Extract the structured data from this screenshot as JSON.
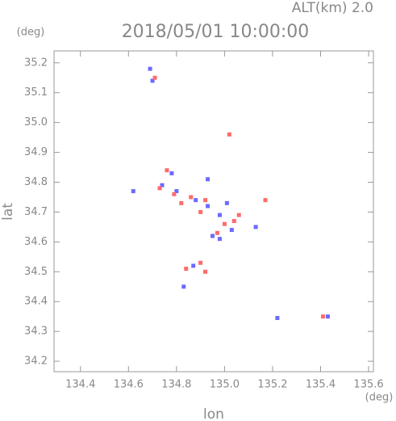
{
  "chart_data": {
    "type": "scatter",
    "title": "2018/05/01 10:00:00",
    "subtitle": "ALT(km) 2.0",
    "x_label": "lon",
    "y_label": "lat",
    "x_unit": "(deg)",
    "y_unit": "(deg)",
    "xlim": [
      134.29,
      135.62
    ],
    "ylim": [
      34.165,
      35.24
    ],
    "xticks": [
      134.4,
      134.6,
      134.8,
      {
        "value": 135,
        "label": "135.0"
      },
      135.2,
      135.4,
      135.6
    ],
    "yticks": [
      34.2,
      34.3,
      34.4,
      34.5,
      34.6,
      34.7,
      34.8,
      34.9,
      {
        "value": 35,
        "label": "35.0"
      },
      35.1,
      35.2
    ],
    "series": [
      {
        "color": "#6a6aff",
        "x": [
          134.69,
          134.7,
          134.78,
          134.8,
          134.74,
          134.88,
          134.93,
          134.95,
          134.98,
          135.03,
          135.01,
          134.83,
          134.87,
          135.22,
          135.43,
          135.13,
          134.62,
          134.93,
          134.98
        ],
        "y": [
          35.18,
          35.14,
          34.83,
          34.77,
          34.79,
          34.74,
          34.72,
          34.62,
          34.61,
          34.64,
          34.73,
          34.45,
          34.52,
          34.345,
          34.35,
          34.65,
          34.77,
          34.81,
          34.69
        ]
      },
      {
        "color": "#ff6a6a",
        "x": [
          134.71,
          135.02,
          134.73,
          134.79,
          134.82,
          134.86,
          134.9,
          134.92,
          135.0,
          135.04,
          135.17,
          134.84,
          134.9,
          134.92,
          135.41,
          135.06,
          134.97,
          134.76
        ],
        "y": [
          35.15,
          34.96,
          34.78,
          34.76,
          34.73,
          34.75,
          34.7,
          34.74,
          34.66,
          34.67,
          34.74,
          34.51,
          34.53,
          34.5,
          34.35,
          34.69,
          34.63,
          34.84
        ]
      }
    ]
  }
}
